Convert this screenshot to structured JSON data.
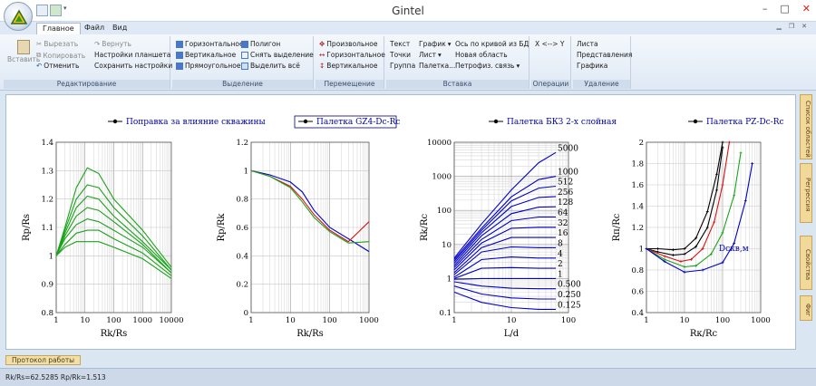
{
  "window": {
    "title": "Gintel",
    "controls": [
      "–",
      "□",
      "✕"
    ]
  },
  "tabs": [
    {
      "label": "Главное",
      "active": true
    },
    {
      "label": "Файл",
      "active": false
    },
    {
      "label": "Вид",
      "active": false
    }
  ],
  "ribbon": {
    "editing": {
      "caption": "Редактирование",
      "paste": "Вставить",
      "cut": "Вырезать",
      "copy": "Копировать",
      "undo": "Отменить",
      "redo": "Вернуть",
      "tablet_settings": "Настройки планшета",
      "save_settings": "Сохранить настройки"
    },
    "selection": {
      "caption": "Выделение",
      "horizontal": "Горизонтальное",
      "vertical": "Вертикальное",
      "rectangular": "Прямоугольное",
      "polygon": "Полигон",
      "clear_selection": "Снять выделение",
      "select_all": "Выделить всё"
    },
    "move": {
      "caption": "Перемещение",
      "arbitrary": "Произвольное",
      "horizontal": "Горизонтальное",
      "vertical": "Вертикальное"
    },
    "insert": {
      "caption": "Вставка",
      "text": "Текст",
      "points": "Точки",
      "group": "Группа",
      "graph": "График",
      "sheet": "Лист",
      "palette": "Палетка...",
      "axis_by_curve": "Ось по кривой из БД",
      "new_area": "Новая область",
      "petrophys_link": "Петрофиз. связь"
    },
    "operations": {
      "caption": "Операции",
      "swap_xy": "X <--> Y"
    },
    "delete": {
      "caption": "Удаление",
      "sheets": "Листа",
      "views": "Представления",
      "graphs": "Графика"
    }
  },
  "sidebar_tabs": [
    "Список областей",
    "Регрессия",
    "Свойства",
    "Фиг"
  ],
  "log_tab": "Протокол работы",
  "status": "Rk/Rs=62.5285  Rp/Rk=1.513",
  "colors": {
    "accent": "#3c5a86",
    "plot_blue": "#0000cc",
    "plot_green": "#1aa31a",
    "plot_red": "#dd1111",
    "plot_black": "#000000"
  },
  "chart_data": [
    {
      "type": "line",
      "title": "Поправка за влияние скважины",
      "xlabel": "Rk/Rs",
      "ylabel": "Rp/Rs",
      "xscale": "log",
      "xlim": [
        1,
        10000
      ],
      "ylim": [
        0.8,
        1.4
      ],
      "xticks": [
        "1",
        "10",
        "100",
        "1000",
        "10000"
      ],
      "yticks": [
        "0.8",
        "0.9",
        "1",
        "1.1",
        "1.2",
        "1.3",
        "1.4"
      ],
      "series": [
        {
          "color": "#1aa31a",
          "x": [
            1,
            2,
            5,
            12,
            30,
            100,
            1000,
            10000
          ],
          "y": [
            1.0,
            1.1,
            1.24,
            1.31,
            1.29,
            1.2,
            1.09,
            0.96
          ]
        },
        {
          "color": "#1aa31a",
          "x": [
            1,
            2,
            5,
            12,
            30,
            100,
            1000,
            10000
          ],
          "y": [
            1.0,
            1.09,
            1.2,
            1.25,
            1.24,
            1.17,
            1.07,
            0.95
          ]
        },
        {
          "color": "#1aa31a",
          "x": [
            1,
            2,
            5,
            12,
            30,
            100,
            1000,
            10000
          ],
          "y": [
            1.0,
            1.08,
            1.17,
            1.21,
            1.2,
            1.14,
            1.05,
            0.95
          ]
        },
        {
          "color": "#1aa31a",
          "x": [
            1,
            2,
            5,
            12,
            30,
            100,
            1000,
            10000
          ],
          "y": [
            1.0,
            1.07,
            1.14,
            1.17,
            1.16,
            1.12,
            1.04,
            0.94
          ]
        },
        {
          "color": "#1aa31a",
          "x": [
            1,
            2,
            5,
            12,
            30,
            100,
            1000,
            10000
          ],
          "y": [
            1.0,
            1.06,
            1.11,
            1.13,
            1.12,
            1.09,
            1.03,
            0.94
          ]
        },
        {
          "color": "#1aa31a",
          "x": [
            1,
            2,
            5,
            12,
            30,
            100,
            1000,
            10000
          ],
          "y": [
            1.0,
            1.04,
            1.08,
            1.09,
            1.09,
            1.06,
            1.01,
            0.93
          ]
        },
        {
          "color": "#1aa31a",
          "x": [
            1,
            2,
            5,
            12,
            30,
            100,
            1000,
            10000
          ],
          "y": [
            1.0,
            1.03,
            1.05,
            1.05,
            1.05,
            1.03,
            0.99,
            0.92
          ]
        }
      ]
    },
    {
      "type": "line",
      "title": "Палетка GZ4-Dc-Rc",
      "xlabel": "Rk/Rs",
      "ylabel": "Rp/Rk",
      "xscale": "log",
      "xlim": [
        1,
        1000
      ],
      "ylim": [
        0,
        1.2
      ],
      "xticks": [
        "1",
        "10",
        "100",
        "1000"
      ],
      "yticks": [
        "0",
        "0.2",
        "0.4",
        "0.6",
        "0.8",
        "1",
        "1.2"
      ],
      "boxed_title": true,
      "series": [
        {
          "color": "#0000cc",
          "x": [
            1,
            3,
            10,
            20,
            40,
            100,
            300,
            1000
          ],
          "y": [
            1.0,
            0.97,
            0.92,
            0.85,
            0.72,
            0.6,
            0.52,
            0.43
          ]
        },
        {
          "color": "#dd1111",
          "x": [
            1,
            3,
            10,
            20,
            40,
            100,
            300,
            1000
          ],
          "y": [
            1.0,
            0.96,
            0.89,
            0.8,
            0.69,
            0.58,
            0.5,
            0.64
          ]
        },
        {
          "color": "#1aa31a",
          "x": [
            1,
            3,
            10,
            20,
            40,
            100,
            300,
            1000
          ],
          "y": [
            1.0,
            0.96,
            0.88,
            0.78,
            0.67,
            0.57,
            0.49,
            0.5
          ]
        }
      ]
    },
    {
      "type": "line",
      "title": "Палетка БКЗ 2-х слойная",
      "xlabel": "L/d",
      "ylabel": "Rk/Rc",
      "xscale": "log",
      "yscale": "log",
      "xlim": [
        1,
        100
      ],
      "ylim": [
        0.1,
        10000
      ],
      "xticks": [
        "1",
        "10",
        "100"
      ],
      "yticks": [
        "0.1",
        "1",
        "10",
        "100",
        "1000",
        "10000"
      ],
      "curve_labels": [
        "5000",
        "1000",
        "512",
        "256",
        "128",
        "64",
        "32",
        "16",
        "8",
        "4",
        "2",
        "1",
        "0.500",
        "0.250",
        "0.125"
      ],
      "series": [
        {
          "color": "#0000cc",
          "name": "5000",
          "x": [
            1,
            3,
            10,
            30,
            60
          ],
          "y": [
            4,
            40,
            400,
            2500,
            5000
          ]
        },
        {
          "color": "#0000cc",
          "name": "1000",
          "x": [
            1,
            3,
            10,
            30,
            60
          ],
          "y": [
            3.6,
            30,
            250,
            800,
            1000
          ]
        },
        {
          "color": "#0000cc",
          "name": "512",
          "x": [
            1,
            3,
            10,
            30,
            60
          ],
          "y": [
            3.2,
            26,
            190,
            450,
            512
          ]
        },
        {
          "color": "#0000cc",
          "name": "256",
          "x": [
            1,
            3,
            10,
            30,
            60
          ],
          "y": [
            2.8,
            22,
            130,
            240,
            256
          ]
        },
        {
          "color": "#0000cc",
          "name": "128",
          "x": [
            1,
            3,
            10,
            30,
            60
          ],
          "y": [
            2.4,
            18,
            80,
            125,
            128
          ]
        },
        {
          "color": "#0000cc",
          "name": "64",
          "x": [
            1,
            3,
            10,
            30,
            60
          ],
          "y": [
            2.1,
            14,
            50,
            64,
            64
          ]
        },
        {
          "color": "#0000cc",
          "name": "32",
          "x": [
            1,
            3,
            10,
            30,
            60
          ],
          "y": [
            1.8,
            11,
            30,
            32,
            32
          ]
        },
        {
          "color": "#0000cc",
          "name": "16",
          "x": [
            1,
            3,
            10,
            30,
            60
          ],
          "y": [
            1.5,
            8,
            16,
            16,
            16
          ]
        },
        {
          "color": "#0000cc",
          "name": "8",
          "x": [
            1,
            3,
            10,
            30,
            60
          ],
          "y": [
            1.3,
            6,
            8.5,
            8,
            8
          ]
        },
        {
          "color": "#0000cc",
          "name": "4",
          "x": [
            1,
            3,
            10,
            30,
            60
          ],
          "y": [
            1.1,
            3.6,
            4.3,
            4,
            4
          ]
        },
        {
          "color": "#0000cc",
          "name": "2",
          "x": [
            1,
            3,
            10,
            30,
            60
          ],
          "y": [
            1.0,
            2.0,
            2.1,
            2,
            2
          ]
        },
        {
          "color": "#0000cc",
          "name": "1",
          "x": [
            1,
            3,
            10,
            30,
            60
          ],
          "y": [
            0.95,
            1.0,
            1.0,
            1,
            1
          ]
        },
        {
          "color": "#0000cc",
          "name": "0.500",
          "x": [
            1,
            3,
            10,
            30,
            60
          ],
          "y": [
            0.8,
            0.6,
            0.52,
            0.5,
            0.5
          ]
        },
        {
          "color": "#0000cc",
          "name": "0.250",
          "x": [
            1,
            3,
            10,
            30,
            60
          ],
          "y": [
            0.6,
            0.35,
            0.27,
            0.25,
            0.25
          ]
        },
        {
          "color": "#0000cc",
          "name": "0.125",
          "x": [
            1,
            3,
            10,
            30,
            60
          ],
          "y": [
            0.4,
            0.2,
            0.14,
            0.125,
            0.125
          ]
        }
      ]
    },
    {
      "type": "line",
      "title": "Палетка PZ-Dc-Rc",
      "xlabel": "Rк/Rc",
      "ylabel": "Rп/Rc",
      "xscale": "log",
      "xlim": [
        1,
        1000
      ],
      "ylim": [
        0.4,
        2
      ],
      "xticks": [
        "1",
        "10",
        "100",
        "1000"
      ],
      "yticks": [
        "0.4",
        "0.6",
        "0.8",
        "1",
        "1.2",
        "1.4",
        "1.6",
        "1.8",
        "2"
      ],
      "annotation": "Dскв,м",
      "series": [
        {
          "color": "#000000",
          "x": [
            1,
            2,
            5,
            10,
            20,
            40,
            70,
            100
          ],
          "y": [
            1.0,
            1.0,
            0.99,
            1.0,
            1.1,
            1.35,
            1.7,
            2.0
          ]
        },
        {
          "color": "#000000",
          "x": [
            1,
            2,
            5,
            10,
            20,
            40,
            70,
            100
          ],
          "y": [
            1.0,
            0.97,
            0.94,
            0.95,
            1.02,
            1.2,
            1.55,
            1.95
          ]
        },
        {
          "color": "#dd1111",
          "x": [
            1,
            3,
            8,
            15,
            30,
            60,
            100,
            150
          ],
          "y": [
            1.0,
            0.93,
            0.88,
            0.9,
            1.0,
            1.25,
            1.6,
            2.0
          ]
        },
        {
          "color": "#1aa31a",
          "x": [
            1,
            3,
            10,
            20,
            50,
            100,
            200,
            300
          ],
          "y": [
            1.0,
            0.9,
            0.83,
            0.84,
            0.95,
            1.15,
            1.5,
            1.9
          ]
        },
        {
          "color": "#0000cc",
          "x": [
            1,
            3,
            10,
            30,
            100,
            200,
            400,
            600
          ],
          "y": [
            1.0,
            0.88,
            0.78,
            0.8,
            0.87,
            1.05,
            1.45,
            1.8
          ]
        }
      ]
    }
  ]
}
